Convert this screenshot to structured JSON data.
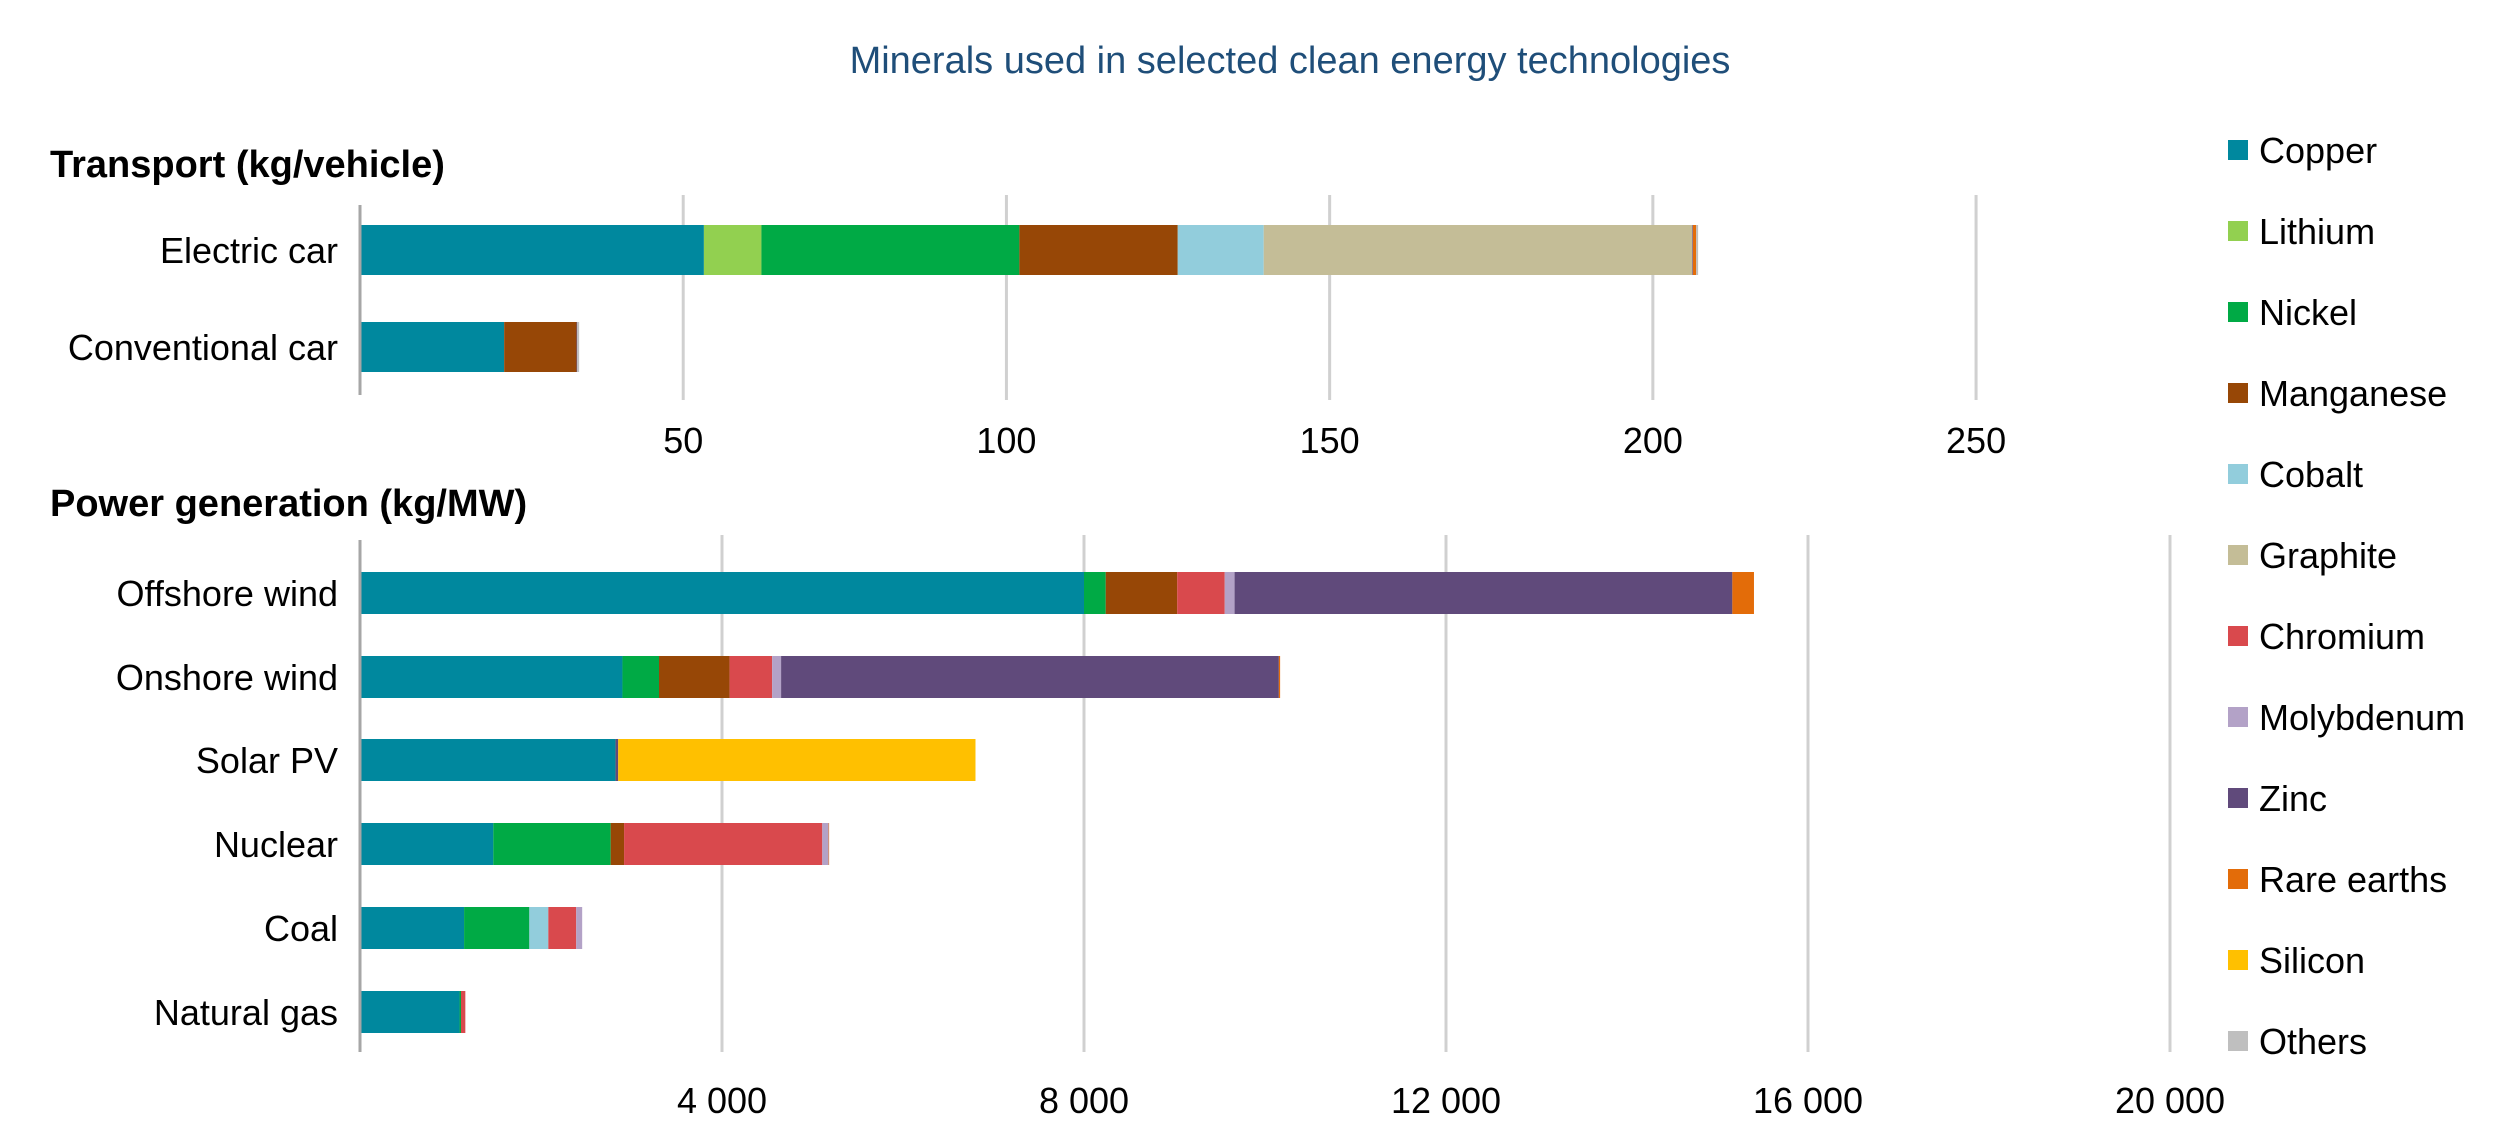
{
  "chart_data": {
    "type": "bar",
    "orientation": "horizontal",
    "stacked": true,
    "title": "Minerals used in selected clean energy technologies",
    "grid": true,
    "legend_position": "right",
    "legend": [
      {
        "name": "Copper",
        "color": "#00889e"
      },
      {
        "name": "Lithium",
        "color": "#92d050"
      },
      {
        "name": "Nickel",
        "color": "#00aa45"
      },
      {
        "name": "Manganese",
        "color": "#974706"
      },
      {
        "name": "Cobalt",
        "color": "#92cddc"
      },
      {
        "name": "Graphite",
        "color": "#c4bd97"
      },
      {
        "name": "Chromium",
        "color": "#d9494d"
      },
      {
        "name": "Molybdenum",
        "color": "#b3a2c7"
      },
      {
        "name": "Zinc",
        "color": "#604a7b"
      },
      {
        "name": "Rare earths",
        "color": "#e36c09"
      },
      {
        "name": "Silicon",
        "color": "#ffc000"
      },
      {
        "name": "Others",
        "color": "#bfbfbf"
      }
    ],
    "panels": [
      {
        "heading_bold": "Transport",
        "heading_unit": "(kg/vehicle)",
        "xlim": [
          0,
          280
        ],
        "ticks": [
          50,
          100,
          150,
          200,
          250
        ],
        "tick_labels": [
          "50",
          "100",
          "150",
          "200",
          "250"
        ],
        "categories": [
          "Electric car",
          "Conventional car"
        ],
        "series": [
          {
            "name": "Copper",
            "values": [
              53.2,
              22.3
            ]
          },
          {
            "name": "Lithium",
            "values": [
              8.9,
              0
            ]
          },
          {
            "name": "Nickel",
            "values": [
              39.9,
              0
            ]
          },
          {
            "name": "Manganese",
            "values": [
              24.5,
              11.2
            ]
          },
          {
            "name": "Cobalt",
            "values": [
              13.3,
              0
            ]
          },
          {
            "name": "Graphite",
            "values": [
              66.3,
              0
            ]
          },
          {
            "name": "Chromium",
            "values": [
              0,
              0
            ]
          },
          {
            "name": "Molybdenum",
            "values": [
              0,
              0
            ]
          },
          {
            "name": "Zinc",
            "values": [
              0.1,
              0.1
            ]
          },
          {
            "name": "Rare earths",
            "values": [
              0.5,
              0
            ]
          },
          {
            "name": "Silicon",
            "values": [
              0,
              0
            ]
          },
          {
            "name": "Others",
            "values": [
              0.3,
              0.3
            ]
          }
        ]
      },
      {
        "heading_bold": "Power generation",
        "heading_unit": "(kg/MW)",
        "xlim": [
          0,
          20000
        ],
        "ticks": [
          4000,
          8000,
          12000,
          16000,
          20000
        ],
        "tick_labels": [
          "4 000",
          "8 000",
          "12 000",
          "16 000",
          "20 000"
        ],
        "categories": [
          "Offshore wind",
          "Onshore wind",
          "Solar PV",
          "Nuclear",
          "Coal",
          "Natural gas"
        ],
        "series": [
          {
            "name": "Copper",
            "values": [
              8000,
              2900,
              2822,
              1473,
              1150,
              1100
            ]
          },
          {
            "name": "Lithium",
            "values": [
              0,
              0,
              0,
              0,
              0,
              0
            ]
          },
          {
            "name": "Nickel",
            "values": [
              240,
              404,
              1,
              1297,
              721,
              16
            ]
          },
          {
            "name": "Manganese",
            "values": [
              790,
              780,
              0,
              148,
              0,
              0
            ]
          },
          {
            "name": "Cobalt",
            "values": [
              0,
              0,
              0,
              0,
              210,
              0
            ]
          },
          {
            "name": "Graphite",
            "values": [
              0,
              0,
              0,
              0,
              0,
              0
            ]
          },
          {
            "name": "Chromium",
            "values": [
              525,
              470,
              0,
              2190,
              308,
              48
            ]
          },
          {
            "name": "Molybdenum",
            "values": [
              109,
              99,
              0,
              70,
              66,
              0
            ]
          },
          {
            "name": "Zinc",
            "values": [
              5500,
              5500,
              30,
              0,
              0,
              0
            ]
          },
          {
            "name": "Rare earths",
            "values": [
              239,
              14,
              0,
              0.5,
              0,
              0
            ]
          },
          {
            "name": "Silicon",
            "values": [
              0,
              0,
              3948,
              0,
              0,
              0
            ]
          },
          {
            "name": "Others",
            "values": [
              0,
              0,
              0,
              0,
              0,
              0
            ]
          }
        ]
      }
    ]
  }
}
